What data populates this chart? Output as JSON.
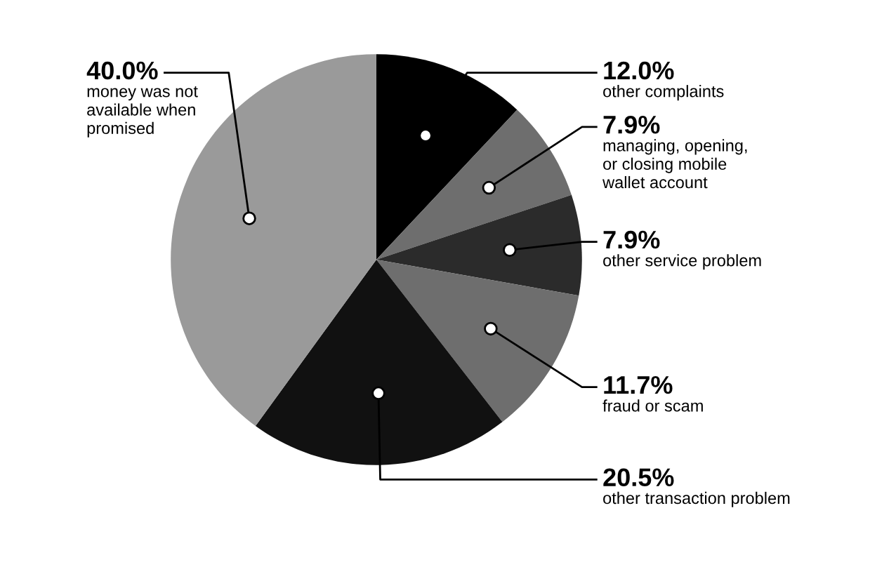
{
  "chart_data": {
    "type": "pie",
    "categories": [
      "other complaints",
      "managing, opening,\nor closing mobile\nwallet account",
      "other service problem",
      "fraud or scam",
      "other transaction problem",
      "money was not\navailable when\npromised"
    ],
    "values": [
      12.0,
      7.9,
      7.9,
      11.7,
      20.5,
      40.0
    ],
    "colors": [
      "#000000",
      "#6e6e6e",
      "#2b2b2b",
      "#6e6e6e",
      "#111111",
      "#9a9a9a"
    ],
    "value_labels": [
      "12.0%",
      "7.9%",
      "7.9%",
      "11.7%",
      "20.5%",
      "40.0%"
    ],
    "data_labels": true,
    "legend": false
  }
}
